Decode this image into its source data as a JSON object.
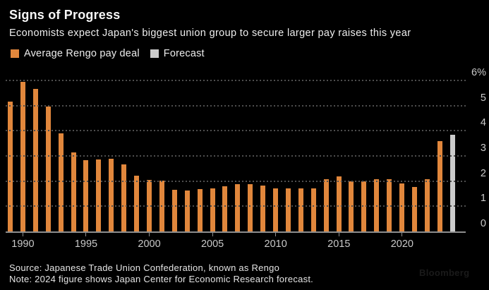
{
  "header": {
    "title": "Signs of Progress",
    "subtitle": "Economists expect Japan's biggest union group to secure larger pay raises this year"
  },
  "legend": {
    "items": [
      {
        "label": "Average Rengo pay deal",
        "color": "#E1873C"
      },
      {
        "label": "Forecast",
        "color": "#CBCBCB"
      }
    ]
  },
  "chart_data": {
    "type": "bar",
    "title": "Signs of Progress",
    "subtitle": "Economists expect Japan's biggest union group to secure larger pay raises this year",
    "categories": [
      1989,
      1990,
      1991,
      1992,
      1993,
      1994,
      1995,
      1996,
      1997,
      1998,
      1999,
      2000,
      2001,
      2002,
      2003,
      2004,
      2005,
      2006,
      2007,
      2008,
      2009,
      2010,
      2011,
      2012,
      2013,
      2014,
      2015,
      2016,
      2017,
      2018,
      2019,
      2020,
      2021,
      2022,
      2023,
      2024
    ],
    "series": [
      {
        "name": "Average Rengo pay deal",
        "color": "#E1873C",
        "years": [
          1989,
          1990,
          1991,
          1992,
          1993,
          1994,
          1995,
          1996,
          1997,
          1998,
          1999,
          2000,
          2001,
          2002,
          2003,
          2004,
          2005,
          2006,
          2007,
          2008,
          2009,
          2010,
          2011,
          2012,
          2013,
          2014,
          2015,
          2016,
          2017,
          2018,
          2019,
          2020,
          2021,
          2022,
          2023
        ],
        "values": [
          5.17,
          5.94,
          5.65,
          4.95,
          3.89,
          3.13,
          2.83,
          2.86,
          2.9,
          2.66,
          2.21,
          2.06,
          2.01,
          1.66,
          1.63,
          1.67,
          1.71,
          1.79,
          1.87,
          1.88,
          1.83,
          1.72,
          1.71,
          1.72,
          1.71,
          2.07,
          2.2,
          2.0,
          1.98,
          2.07,
          2.07,
          1.9,
          1.78,
          2.07,
          3.58
        ]
      },
      {
        "name": "Forecast",
        "color": "#CBCBCB",
        "years": [
          2024
        ],
        "values": [
          3.85
        ]
      }
    ],
    "ylim": [
      0,
      6
    ],
    "ylabel": "",
    "xlabel": "",
    "ytick_values": [
      6,
      5,
      4,
      3,
      2,
      1,
      0
    ],
    "ytick_labels": [
      "6%",
      "5",
      "4",
      "3",
      "2",
      "1",
      "0"
    ],
    "xtick_labels": [
      "1990",
      "1995",
      "2000",
      "2005",
      "2010",
      "2015",
      "2020"
    ],
    "grid": "dotted-horizontal",
    "legend_position": "top-left",
    "axis_side": "right"
  },
  "footer": {
    "source": "Source: Japanese Trade Union Confederation, known as Rengo",
    "note": "Note: 2024 figure shows Japan Center for Economic Research forecast."
  },
  "watermark": "Bloomberg",
  "colors": {
    "background": "#000000",
    "bar": "#E1873C",
    "forecast_bar": "#CBCBCB",
    "gridline": "#4E4E4E",
    "axis_line": "#8E8E8E",
    "title_text": "#F7F7F7",
    "body_text": "#EDEDED",
    "tick_text": "#C9C9C9",
    "source_text": "#E4E4E4"
  }
}
